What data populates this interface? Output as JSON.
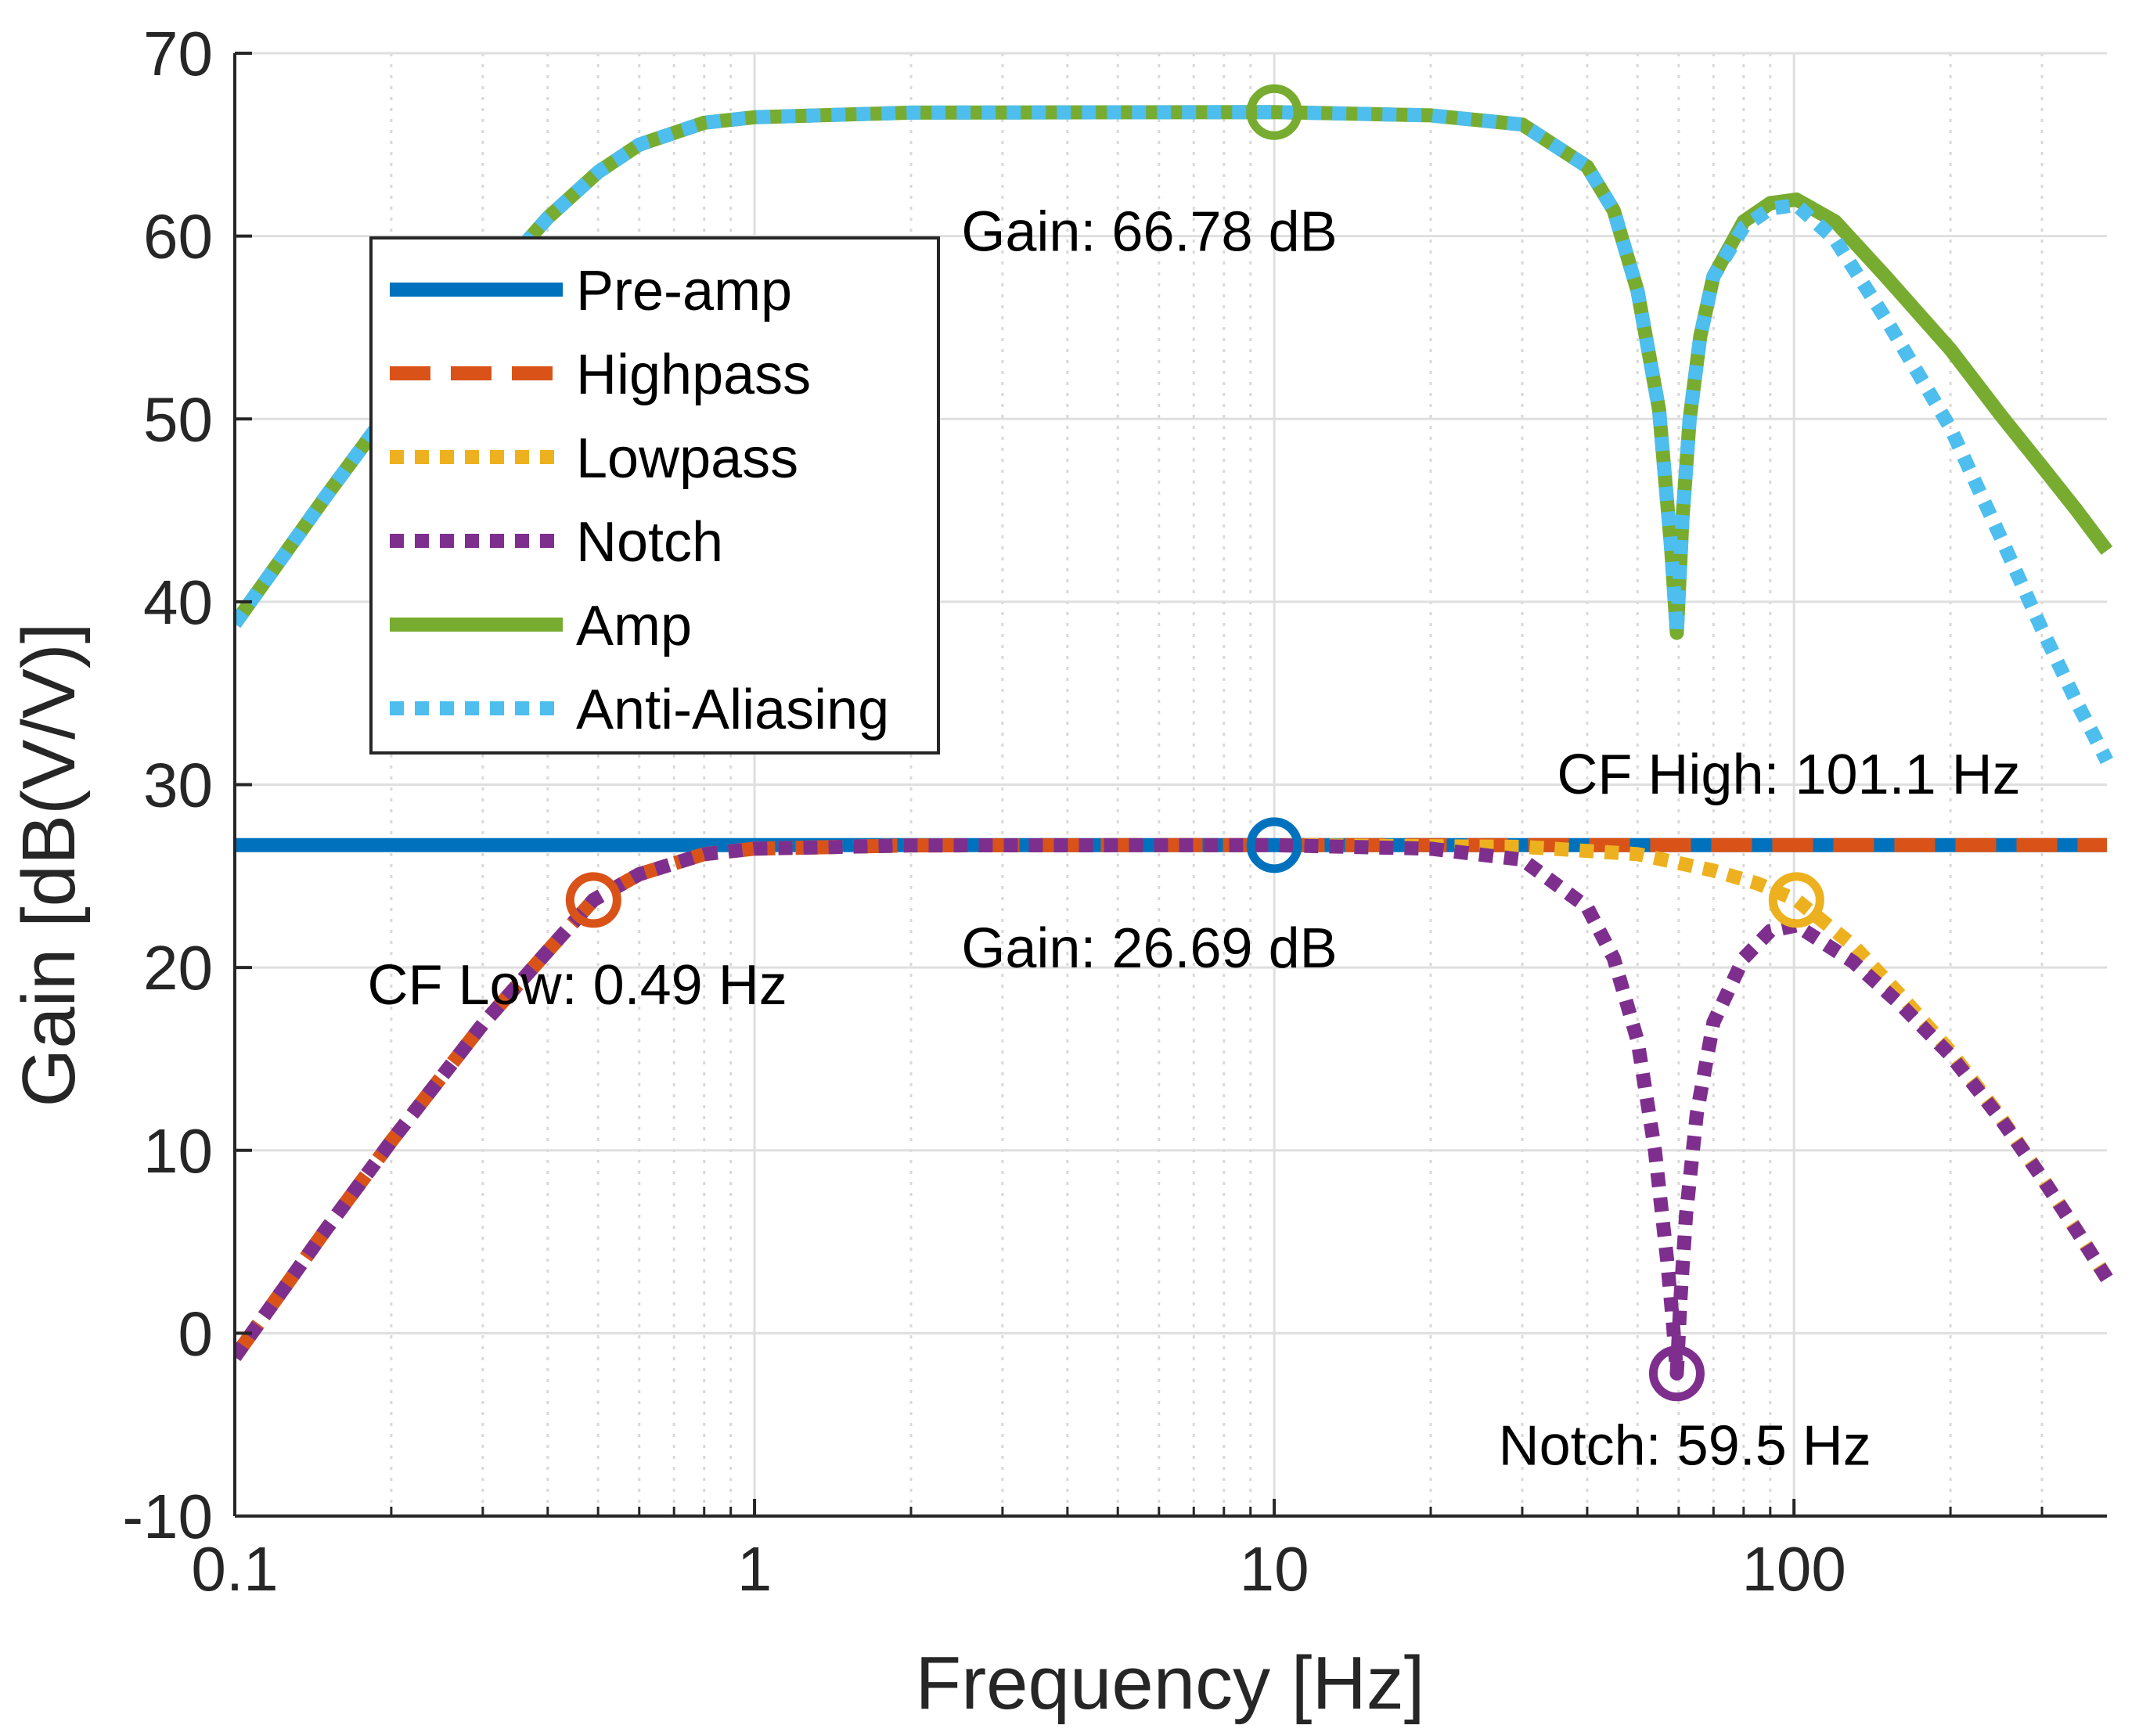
{
  "chart_data": {
    "type": "line",
    "xscale": "log",
    "xlabel": "Frequency [Hz]",
    "ylabel": "Gain [dB(V/V)]",
    "xlim": [
      0.1,
      400
    ],
    "ylim": [
      -10,
      70
    ],
    "xticks": [
      0.1,
      1,
      10,
      100
    ],
    "xtick_labels": [
      "0.1",
      "1",
      "10",
      "100"
    ],
    "yticks": [
      -10,
      0,
      10,
      20,
      30,
      40,
      50,
      60,
      70
    ],
    "ytick_labels": [
      "-10",
      "0",
      "10",
      "20",
      "30",
      "40",
      "50",
      "60",
      "70"
    ],
    "grid": true,
    "minor_grid": true,
    "legend_position": "upper-left",
    "series": [
      {
        "name": "Pre-amp",
        "color": "#0072BD",
        "style": "solid",
        "points": [
          [
            0.1,
            26.69
          ],
          [
            400,
            26.69
          ]
        ]
      },
      {
        "name": "Highpass",
        "color": "#D95319",
        "style": "dashed",
        "points": [
          [
            0.1,
            -1.3
          ],
          [
            0.15,
            5.7
          ],
          [
            0.2,
            10.5
          ],
          [
            0.3,
            16.9
          ],
          [
            0.4,
            20.9
          ],
          [
            0.49,
            23.69
          ],
          [
            0.6,
            25.1
          ],
          [
            0.8,
            26.2
          ],
          [
            1,
            26.5
          ],
          [
            2,
            26.68
          ],
          [
            5,
            26.69
          ],
          [
            400,
            26.69
          ]
        ]
      },
      {
        "name": "Lowpass",
        "color": "#EDB120",
        "style": "dotted",
        "points": [
          [
            0.1,
            -1.3
          ],
          [
            0.15,
            5.7
          ],
          [
            0.2,
            10.5
          ],
          [
            0.3,
            16.9
          ],
          [
            0.4,
            20.9
          ],
          [
            0.49,
            23.69
          ],
          [
            0.6,
            25.1
          ],
          [
            0.8,
            26.2
          ],
          [
            1,
            26.5
          ],
          [
            2,
            26.68
          ],
          [
            10,
            26.69
          ],
          [
            30,
            26.6
          ],
          [
            50,
            26.2
          ],
          [
            70,
            25.3
          ],
          [
            85,
            24.6
          ],
          [
            101.1,
            23.69
          ],
          [
            130,
            21.2
          ],
          [
            160,
            18.5
          ],
          [
            200,
            15.4
          ],
          [
            250,
            11.8
          ],
          [
            300,
            8.5
          ],
          [
            350,
            5.6
          ],
          [
            400,
            3.0
          ]
        ]
      },
      {
        "name": "Notch",
        "color": "#7E2F8E",
        "style": "dotted",
        "points": [
          [
            0.1,
            -1.3
          ],
          [
            0.15,
            5.7
          ],
          [
            0.2,
            10.5
          ],
          [
            0.3,
            16.9
          ],
          [
            0.4,
            20.9
          ],
          [
            0.49,
            23.69
          ],
          [
            0.6,
            25.1
          ],
          [
            0.8,
            26.2
          ],
          [
            1,
            26.5
          ],
          [
            2,
            26.68
          ],
          [
            10,
            26.69
          ],
          [
            20,
            26.5
          ],
          [
            30,
            25.9
          ],
          [
            40,
            23.3
          ],
          [
            45,
            20.5
          ],
          [
            50,
            16.0
          ],
          [
            54,
            10.0
          ],
          [
            57,
            4.0
          ],
          [
            58.5,
            0.5
          ],
          [
            59.5,
            -2.2
          ],
          [
            60.5,
            2.0
          ],
          [
            62,
            6.5
          ],
          [
            65,
            12.0
          ],
          [
            70,
            17.0
          ],
          [
            80,
            20.5
          ],
          [
            90,
            22.0
          ],
          [
            101.1,
            22.3
          ],
          [
            130,
            20.3
          ],
          [
            160,
            18.0
          ],
          [
            200,
            15.2
          ],
          [
            250,
            11.7
          ],
          [
            300,
            8.5
          ],
          [
            350,
            5.6
          ],
          [
            400,
            3.0
          ]
        ]
      },
      {
        "name": "Amp",
        "color": "#77AC30",
        "style": "solid",
        "points": [
          [
            0.1,
            38.8
          ],
          [
            0.15,
            45.8
          ],
          [
            0.2,
            50.6
          ],
          [
            0.3,
            57.0
          ],
          [
            0.4,
            61.0
          ],
          [
            0.5,
            63.5
          ],
          [
            0.6,
            65.0
          ],
          [
            0.8,
            66.2
          ],
          [
            1,
            66.5
          ],
          [
            2,
            66.75
          ],
          [
            10,
            66.78
          ],
          [
            20,
            66.6
          ],
          [
            30,
            66.1
          ],
          [
            40,
            63.8
          ],
          [
            45,
            61.4
          ],
          [
            50,
            57.0
          ],
          [
            55,
            50.5
          ],
          [
            58,
            43.0
          ],
          [
            59.5,
            38.3
          ],
          [
            61,
            44.5
          ],
          [
            63,
            50.0
          ],
          [
            66,
            54.5
          ],
          [
            70,
            57.8
          ],
          [
            80,
            60.8
          ],
          [
            90,
            61.8
          ],
          [
            101.1,
            62.0
          ],
          [
            120,
            60.8
          ],
          [
            150,
            57.8
          ],
          [
            200,
            53.8
          ],
          [
            250,
            50.2
          ],
          [
            300,
            47.4
          ],
          [
            350,
            45.0
          ],
          [
            400,
            42.8
          ]
        ]
      },
      {
        "name": "Anti-Aliasing",
        "color": "#4DBEEE",
        "style": "dotted",
        "points": [
          [
            0.1,
            38.8
          ],
          [
            0.15,
            45.8
          ],
          [
            0.2,
            50.6
          ],
          [
            0.3,
            57.0
          ],
          [
            0.4,
            61.0
          ],
          [
            0.5,
            63.5
          ],
          [
            0.6,
            65.0
          ],
          [
            0.8,
            66.2
          ],
          [
            1,
            66.5
          ],
          [
            2,
            66.75
          ],
          [
            10,
            66.78
          ],
          [
            20,
            66.6
          ],
          [
            30,
            66.1
          ],
          [
            40,
            63.8
          ],
          [
            45,
            61.4
          ],
          [
            50,
            57.0
          ],
          [
            55,
            50.5
          ],
          [
            58,
            43.0
          ],
          [
            59.5,
            38.3
          ],
          [
            61,
            44.5
          ],
          [
            63,
            50.0
          ],
          [
            66,
            54.5
          ],
          [
            70,
            57.8
          ],
          [
            80,
            60.5
          ],
          [
            90,
            61.5
          ],
          [
            101.1,
            61.7
          ],
          [
            120,
            59.8
          ],
          [
            150,
            55.5
          ],
          [
            200,
            49.5
          ],
          [
            250,
            43.5
          ],
          [
            300,
            38.5
          ],
          [
            350,
            34.5
          ],
          [
            400,
            31.3
          ]
        ]
      }
    ],
    "markers": [
      {
        "x": 10,
        "y": 66.78,
        "color": "#77AC30"
      },
      {
        "x": 10,
        "y": 26.69,
        "color": "#0072BD"
      },
      {
        "x": 0.49,
        "y": 23.69,
        "color": "#D95319"
      },
      {
        "x": 101.1,
        "y": 23.69,
        "color": "#EDB120"
      },
      {
        "x": 59.5,
        "y": -2.2,
        "color": "#7E2F8E"
      }
    ],
    "annotations": [
      {
        "text": "Gain: 66.78 dB",
        "x": 2.5,
        "y": 59.2
      },
      {
        "text": "Gain: 26.69 dB",
        "x": 2.5,
        "y": 20.0
      },
      {
        "text": "CF Low: 0.49 Hz",
        "x": 0.18,
        "y": 18.0
      },
      {
        "text": "CF High: 101.1 Hz",
        "x": 35,
        "y": 29.5
      },
      {
        "text": "Notch: 59.5 Hz",
        "x": 27,
        "y": -7.2
      }
    ]
  }
}
